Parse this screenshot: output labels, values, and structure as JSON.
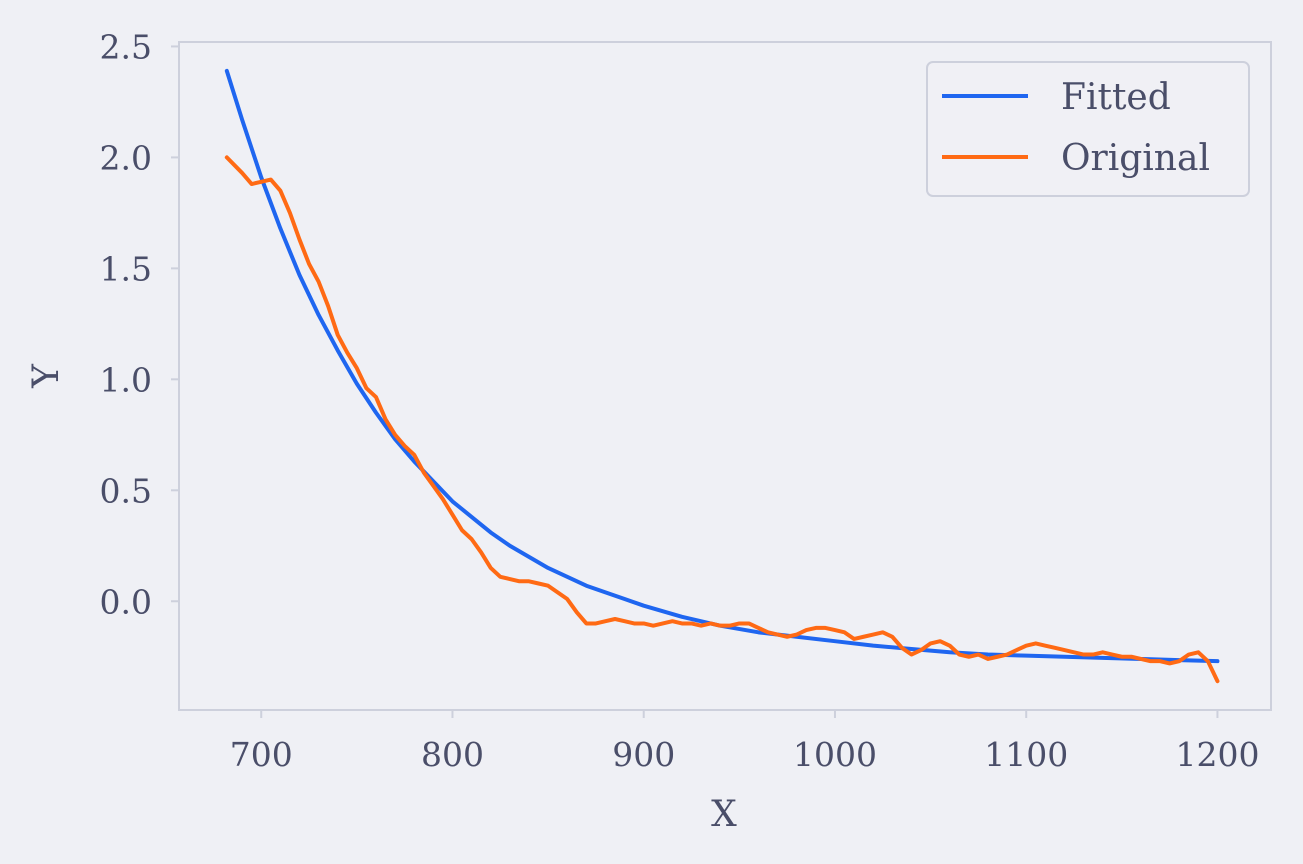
{
  "chart_data": {
    "type": "line",
    "title": "",
    "xlabel": "X",
    "ylabel": "Y",
    "xlim": [
      657,
      1228
    ],
    "ylim": [
      -0.49,
      2.52
    ],
    "x_ticks": [
      700,
      800,
      900,
      1000,
      1100,
      1200
    ],
    "x_tick_labels": [
      "700",
      "800",
      "900",
      "1000",
      "1100",
      "1200"
    ],
    "y_ticks": [
      0.0,
      0.5,
      1.0,
      1.5,
      2.0,
      2.5
    ],
    "y_tick_labels": [
      "0.0",
      "0.5",
      "1.0",
      "1.5",
      "2.0",
      "2.5"
    ],
    "grid": false,
    "legend_position": "top-right",
    "colors": {
      "background": "#eff0f5",
      "frame": "#cdd0dc",
      "text": "#4a4e69",
      "fitted": "#1f66f0",
      "original": "#ff6a14"
    },
    "series": [
      {
        "name": "Fitted",
        "color": "#1f66f0",
        "x": [
          682,
          690,
          700,
          710,
          720,
          730,
          740,
          750,
          760,
          770,
          780,
          790,
          800,
          810,
          820,
          830,
          840,
          850,
          860,
          870,
          880,
          890,
          900,
          920,
          940,
          960,
          980,
          1000,
          1020,
          1040,
          1060,
          1080,
          1100,
          1120,
          1140,
          1160,
          1180,
          1200
        ],
        "y": [
          2.39,
          2.17,
          1.91,
          1.68,
          1.47,
          1.29,
          1.13,
          0.98,
          0.85,
          0.73,
          0.63,
          0.54,
          0.45,
          0.38,
          0.31,
          0.25,
          0.2,
          0.15,
          0.11,
          0.07,
          0.04,
          0.01,
          -0.02,
          -0.07,
          -0.11,
          -0.14,
          -0.16,
          -0.18,
          -0.2,
          -0.215,
          -0.23,
          -0.24,
          -0.245,
          -0.25,
          -0.255,
          -0.26,
          -0.265,
          -0.27
        ]
      },
      {
        "name": "Original",
        "color": "#ff6a14",
        "x": [
          682,
          690,
          695,
          700,
          705,
          710,
          715,
          720,
          725,
          730,
          735,
          740,
          745,
          750,
          755,
          760,
          765,
          770,
          775,
          780,
          785,
          790,
          795,
          800,
          805,
          810,
          815,
          820,
          825,
          830,
          835,
          840,
          845,
          850,
          855,
          860,
          865,
          870,
          875,
          880,
          885,
          890,
          895,
          900,
          905,
          910,
          915,
          920,
          925,
          930,
          935,
          940,
          945,
          950,
          955,
          960,
          965,
          970,
          975,
          980,
          985,
          990,
          995,
          1000,
          1005,
          1010,
          1015,
          1020,
          1025,
          1030,
          1035,
          1040,
          1045,
          1050,
          1055,
          1060,
          1065,
          1070,
          1075,
          1080,
          1085,
          1090,
          1095,
          1100,
          1105,
          1110,
          1115,
          1120,
          1125,
          1130,
          1135,
          1140,
          1145,
          1150,
          1155,
          1160,
          1165,
          1170,
          1175,
          1180,
          1185,
          1190,
          1195,
          1200
        ],
        "y": [
          2.0,
          1.93,
          1.88,
          1.89,
          1.9,
          1.85,
          1.75,
          1.63,
          1.52,
          1.44,
          1.33,
          1.2,
          1.12,
          1.05,
          0.96,
          0.92,
          0.82,
          0.75,
          0.7,
          0.66,
          0.58,
          0.52,
          0.46,
          0.39,
          0.32,
          0.28,
          0.22,
          0.15,
          0.11,
          0.1,
          0.09,
          0.09,
          0.08,
          0.07,
          0.04,
          0.01,
          -0.05,
          -0.1,
          -0.1,
          -0.09,
          -0.08,
          -0.09,
          -0.1,
          -0.1,
          -0.11,
          -0.1,
          -0.09,
          -0.1,
          -0.1,
          -0.11,
          -0.1,
          -0.11,
          -0.11,
          -0.1,
          -0.1,
          -0.12,
          -0.14,
          -0.15,
          -0.16,
          -0.15,
          -0.13,
          -0.12,
          -0.12,
          -0.13,
          -0.14,
          -0.17,
          -0.16,
          -0.15,
          -0.14,
          -0.16,
          -0.21,
          -0.24,
          -0.22,
          -0.19,
          -0.18,
          -0.2,
          -0.24,
          -0.25,
          -0.24,
          -0.26,
          -0.25,
          -0.24,
          -0.22,
          -0.2,
          -0.19,
          -0.2,
          -0.21,
          -0.22,
          -0.23,
          -0.24,
          -0.24,
          -0.23,
          -0.24,
          -0.25,
          -0.25,
          -0.26,
          -0.27,
          -0.27,
          -0.28,
          -0.27,
          -0.24,
          -0.23,
          -0.27,
          -0.36
        ]
      }
    ]
  }
}
